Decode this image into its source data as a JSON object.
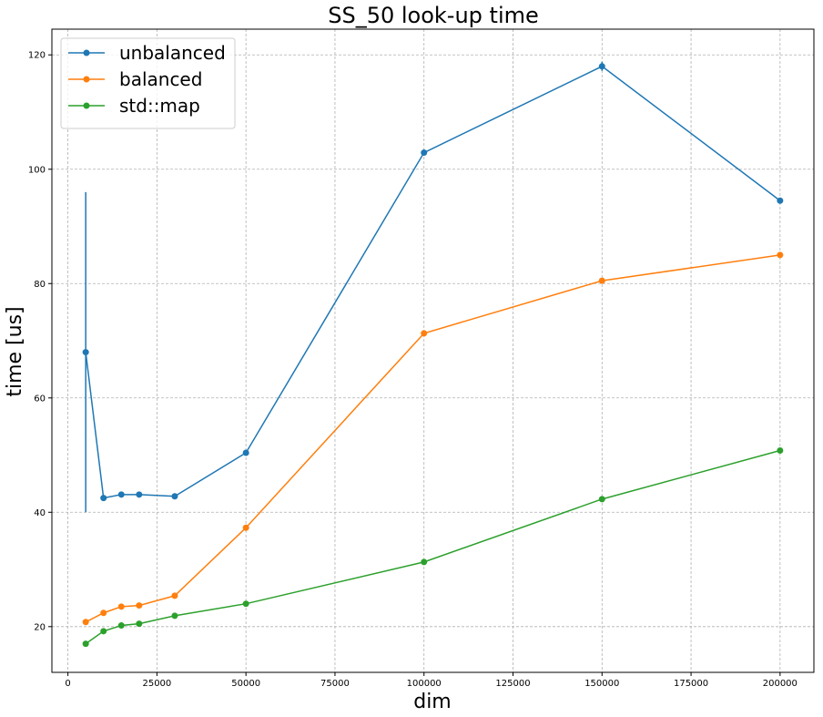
{
  "chart_data": {
    "type": "line",
    "title": "SS_50 look-up time",
    "xlabel": "dim",
    "ylabel": "time [us]",
    "xlim": [
      -4500,
      209500
    ],
    "ylim": [
      12,
      124.5
    ],
    "x_ticks": [
      0,
      25000,
      50000,
      75000,
      100000,
      125000,
      150000,
      175000,
      200000
    ],
    "x_tick_labels": [
      "0",
      "25000",
      "50000",
      "75000",
      "100000",
      "125000",
      "150000",
      "175000",
      "200000"
    ],
    "y_ticks": [
      20,
      40,
      60,
      80,
      100,
      120
    ],
    "y_tick_labels": [
      "20",
      "40",
      "60",
      "80",
      "100",
      "120"
    ],
    "grid": true,
    "legend_position": "top-left",
    "x": [
      5000,
      10000,
      15000,
      20000,
      30000,
      50000,
      100000,
      150000,
      200000
    ],
    "series": [
      {
        "name": "unbalanced",
        "color": "#1f77b4",
        "values": [
          68.0,
          42.5,
          43.1,
          43.1,
          42.8,
          50.4,
          102.9,
          118.0,
          94.5
        ],
        "errors": [
          28.0,
          0.3,
          0.3,
          0.3,
          0.3,
          0.4,
          0.5,
          0.8,
          0.5
        ]
      },
      {
        "name": "balanced",
        "color": "#ff7f0e",
        "values": [
          20.8,
          22.4,
          23.5,
          23.7,
          25.4,
          37.3,
          71.3,
          80.5,
          85.0
        ],
        "errors": [
          0.2,
          0.2,
          0.2,
          0.2,
          0.2,
          0.3,
          0.4,
          0.4,
          0.5
        ]
      },
      {
        "name": "std::map",
        "color": "#2ca02c",
        "values": [
          17.0,
          19.2,
          20.2,
          20.5,
          21.9,
          24.0,
          31.3,
          42.3,
          50.8
        ],
        "errors": [
          0.2,
          0.2,
          0.2,
          0.2,
          0.2,
          0.2,
          0.2,
          0.3,
          0.3
        ]
      }
    ]
  }
}
